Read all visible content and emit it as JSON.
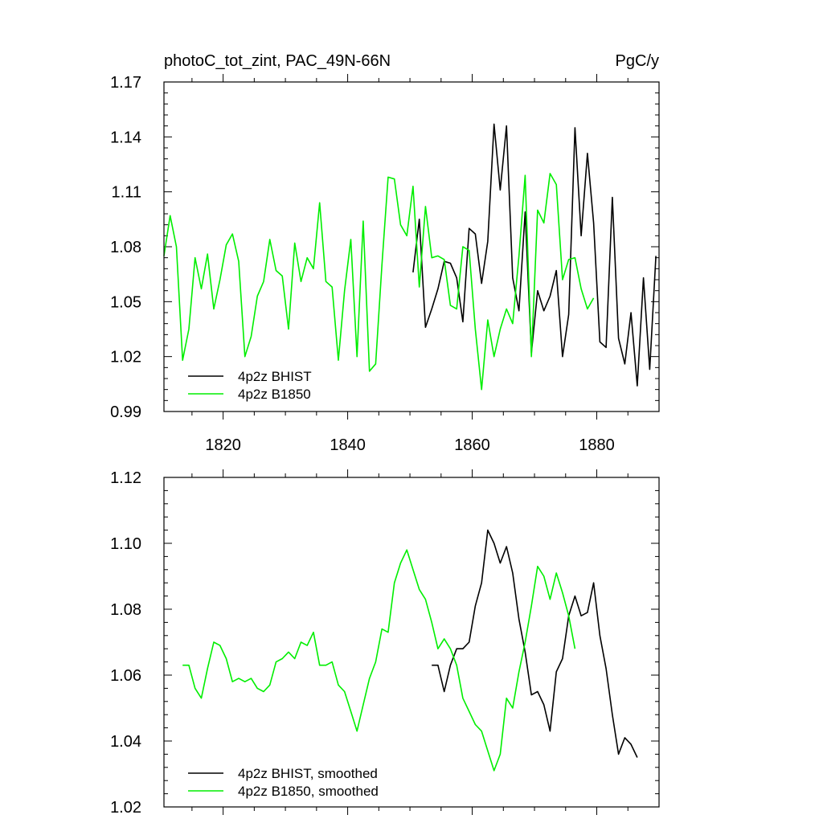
{
  "chart_data": [
    {
      "type": "line",
      "title": "photoC_tot_zint, PAC_49N-66N",
      "units": "PgC/y",
      "xlim": [
        1810.5,
        1890
      ],
      "ylim": [
        0.99,
        1.17
      ],
      "xticks": [
        1820,
        1840,
        1860,
        1880
      ],
      "xtick_labels": [
        "1820",
        "1840",
        "1860",
        "1880"
      ],
      "yticks": [
        0.99,
        1.02,
        1.05,
        1.08,
        1.11,
        1.14,
        1.17
      ],
      "ytick_labels": [
        "0.99",
        "1.02",
        "1.05",
        "1.08",
        "1.11",
        "1.14",
        "1.17"
      ],
      "legend_position": "bottom-left",
      "series": [
        {
          "name": "4p2z BHIST",
          "color": "#000000",
          "x0": 1850.5,
          "values": [
            1.066,
            1.095,
            1.036,
            1.046,
            1.057,
            1.072,
            1.071,
            1.063,
            1.039,
            1.09,
            1.087,
            1.06,
            1.083,
            1.147,
            1.111,
            1.146,
            1.063,
            1.045,
            1.099,
            1.022,
            1.056,
            1.045,
            1.053,
            1.067,
            1.02,
            1.043,
            1.145,
            1.086,
            1.131,
            1.093,
            1.028,
            1.025,
            1.107,
            1.03,
            1.016,
            1.044,
            1.004,
            1.063,
            1.013,
            1.075
          ]
        },
        {
          "name": "4p2z B1850",
          "color": "#00ee00",
          "x0": 1810.5,
          "values": [
            1.075,
            1.097,
            1.08,
            1.018,
            1.035,
            1.074,
            1.057,
            1.076,
            1.046,
            1.062,
            1.081,
            1.087,
            1.072,
            1.02,
            1.031,
            1.053,
            1.061,
            1.084,
            1.067,
            1.064,
            1.035,
            1.082,
            1.061,
            1.074,
            1.068,
            1.104,
            1.061,
            1.058,
            1.018,
            1.056,
            1.084,
            1.02,
            1.094,
            1.012,
            1.016,
            1.07,
            1.118,
            1.117,
            1.092,
            1.086,
            1.113,
            1.058,
            1.102,
            1.074,
            1.075,
            1.073,
            1.048,
            1.046,
            1.08,
            1.078,
            1.035,
            1.002,
            1.04,
            1.02,
            1.035,
            1.046,
            1.038,
            1.075,
            1.119,
            1.02,
            1.1,
            1.093,
            1.12,
            1.114,
            1.062,
            1.073,
            1.074,
            1.057,
            1.046,
            1.052
          ]
        }
      ]
    },
    {
      "type": "line",
      "xlim": [
        1810.5,
        1890
      ],
      "ylim": [
        1.02,
        1.12
      ],
      "xticks": [
        1820,
        1840,
        1860,
        1880
      ],
      "yticks": [
        1.02,
        1.04,
        1.06,
        1.08,
        1.1,
        1.12
      ],
      "ytick_labels": [
        "1.02",
        "1.04",
        "1.06",
        "1.08",
        "1.10",
        "1.12"
      ],
      "legend_position": "bottom-left",
      "series": [
        {
          "name": "4p2z BHIST, smoothed",
          "color": "#000000",
          "x0": 1853.5,
          "values": [
            1.063,
            1.063,
            1.055,
            1.063,
            1.068,
            1.068,
            1.07,
            1.081,
            1.088,
            1.104,
            1.1,
            1.094,
            1.099,
            1.091,
            1.077,
            1.067,
            1.054,
            1.055,
            1.051,
            1.043,
            1.061,
            1.065,
            1.078,
            1.084,
            1.078,
            1.079,
            1.088,
            1.072,
            1.062,
            1.048,
            1.036,
            1.041,
            1.039,
            1.035
          ]
        },
        {
          "name": "4p2z B1850, smoothed",
          "color": "#00ee00",
          "x0": 1813.5,
          "values": [
            1.063,
            1.063,
            1.056,
            1.053,
            1.062,
            1.07,
            1.069,
            1.065,
            1.058,
            1.059,
            1.058,
            1.059,
            1.056,
            1.055,
            1.057,
            1.064,
            1.065,
            1.067,
            1.065,
            1.07,
            1.069,
            1.073,
            1.063,
            1.063,
            1.064,
            1.057,
            1.055,
            1.049,
            1.043,
            1.051,
            1.059,
            1.064,
            1.074,
            1.073,
            1.088,
            1.094,
            1.098,
            1.092,
            1.086,
            1.083,
            1.076,
            1.068,
            1.071,
            1.068,
            1.063,
            1.053,
            1.049,
            1.045,
            1.043,
            1.037,
            1.031,
            1.036,
            1.053,
            1.05,
            1.061,
            1.07,
            1.081,
            1.093,
            1.09,
            1.083,
            1.091,
            1.085,
            1.078,
            1.068
          ]
        }
      ]
    }
  ]
}
